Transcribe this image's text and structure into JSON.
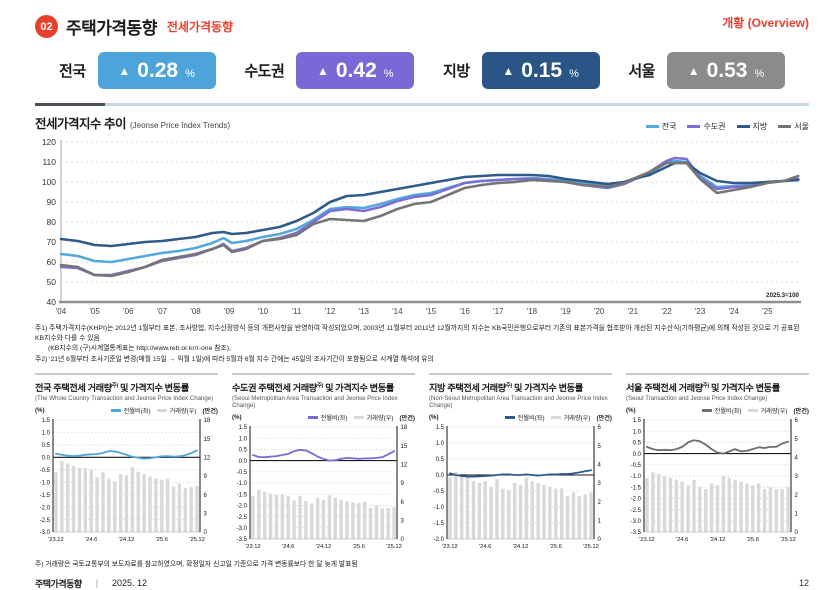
{
  "header": {
    "badge": "02",
    "title": "주택가격동향",
    "subtitle": "전세가격동향",
    "overview": "개황 (Overview)"
  },
  "stats": [
    {
      "label": "전국",
      "arrow": "▲",
      "value": "0.28",
      "unit": "%",
      "color": "#4CA4DB"
    },
    {
      "label": "수도권",
      "arrow": "▲",
      "value": "0.42",
      "unit": "%",
      "color": "#7A68D6"
    },
    {
      "label": "지방",
      "arrow": "▲",
      "value": "0.15",
      "unit": "%",
      "color": "#2A5586"
    },
    {
      "label": "서울",
      "arrow": "▲",
      "value": "0.53",
      "unit": "%",
      "color": "#8B8B8B"
    }
  ],
  "notes": [
    {
      "text": "주1) 주택가격지수(KHPI)는 2012년 1월부터 표본, 조사방법, 지수산정방식 등의 개편사항을 반영하여 작성되었으며, 2003년 11월부터 2011년 12월까지의 지수는 KB국민은행으로부터 기존의 표본가격을 협조받아 개선된 지수산식(기하평균)에 의해 작성된 것으로 기 공표된 KB지수와 다를 수 있음",
      "indent": false
    },
    {
      "text": "(KB지수의 (구)시계열통계표는 http://www.reb.or.kr/r-one 참조),",
      "indent": true
    },
    {
      "text": "주2) '21년 6월부터 조사기준일 변경(매월 15일 → 익월 1일)에 따라 5월과 6월 지수 간에는 45일의 조사기간이 포함됨으로 시계열 해석에 유의",
      "indent": false
    }
  ],
  "bottom_note": "주) 거래량은 국토교통부의 보도자료를 참고하였으며, 확정일자 신고일 기준으로 가격 변동률보다 한 달 늦게 발표됨",
  "footer": {
    "title": "주택가격동향",
    "divider": "|",
    "date": "2025. 12",
    "page": "12"
  },
  "chart_data": [
    {
      "type": "line",
      "title": "전세가격지수 추이",
      "subtitle_en": "(Jeonse Price Index Trends)",
      "note": "2025.3=100",
      "ylim": [
        40,
        120
      ],
      "ytick_step": 10,
      "x_range": [
        2004,
        2026
      ],
      "x_tick_labels": [
        "'04",
        "'05",
        "'06",
        "'07",
        "'08",
        "'09",
        "'10",
        "'11",
        "'12",
        "'13",
        "'14",
        "'15",
        "'16",
        "'17",
        "'18",
        "'19",
        "'20",
        "'21",
        "'22",
        "'23",
        "'24",
        "'25"
      ],
      "legend_position": "top-right",
      "x": [
        2004.0,
        2004.5,
        2005.0,
        2005.5,
        2006.0,
        2006.5,
        2007.0,
        2007.5,
        2008.0,
        2008.5,
        2008.83,
        2009.08,
        2009.5,
        2010.0,
        2010.5,
        2011.0,
        2011.5,
        2012.0,
        2012.5,
        2013.0,
        2013.5,
        2014.0,
        2014.5,
        2015.0,
        2015.5,
        2016.0,
        2016.5,
        2017.0,
        2017.5,
        2018.0,
        2018.5,
        2019.0,
        2019.5,
        2020.0,
        2020.25,
        2020.75,
        2021.0,
        2021.5,
        2022.0,
        2022.25,
        2022.6,
        2023.0,
        2023.5,
        2024.0,
        2024.5,
        2025.0,
        2025.5,
        2025.92
      ],
      "series": [
        {
          "name": "전국",
          "color": "#55A8DC",
          "values": [
            64,
            63,
            60.5,
            60,
            61.5,
            63,
            64.5,
            65.5,
            67,
            69.5,
            72,
            69.5,
            70.5,
            72.5,
            74,
            76.5,
            81,
            86.5,
            87.5,
            87,
            89,
            91.5,
            93.5,
            94.5,
            97,
            99.5,
            100.5,
            101,
            101.5,
            102,
            101.5,
            100.5,
            99.5,
            98.5,
            98,
            99.5,
            101,
            104.5,
            109.5,
            110.5,
            110,
            103,
            97.5,
            98,
            98.5,
            100,
            100.5,
            101.5
          ]
        },
        {
          "name": "수도권",
          "color": "#7B6FD6",
          "values": [
            57.5,
            57,
            53.5,
            53.5,
            55.5,
            57.5,
            60.5,
            62,
            63.5,
            66.5,
            69,
            65.5,
            67,
            70.5,
            72,
            74.5,
            80,
            85.5,
            86.5,
            85.5,
            87.5,
            90.5,
            92.5,
            93.5,
            96.5,
            99.5,
            100.5,
            101,
            101.5,
            101.5,
            101,
            100,
            98.5,
            97.5,
            97,
            99,
            101,
            105,
            110.5,
            112,
            111.5,
            102,
            96.5,
            97.5,
            98,
            100,
            100.5,
            101.5
          ]
        },
        {
          "name": "지방",
          "color": "#2E5A8C",
          "values": [
            71.5,
            70.5,
            68.5,
            68,
            69,
            70,
            70.5,
            71.5,
            72.5,
            74.5,
            75,
            74,
            74.5,
            76,
            77.5,
            80.5,
            84.5,
            90,
            93,
            93.5,
            95,
            96.5,
            98,
            99.5,
            101,
            102.5,
            103,
            103.5,
            103.5,
            103.5,
            103,
            101.5,
            100.5,
            99.5,
            99,
            100,
            101.5,
            103.5,
            107.5,
            109.5,
            109.5,
            104.5,
            100.5,
            99.5,
            99.5,
            100,
            100.5,
            101
          ]
        },
        {
          "name": "서울",
          "color": "#757575",
          "values": [
            58.5,
            57.5,
            53.5,
            53,
            55,
            57.5,
            61,
            62.5,
            64,
            66.5,
            68.5,
            65,
            66.5,
            70.5,
            71.5,
            73.5,
            79,
            81.5,
            81,
            80.5,
            83,
            86.5,
            89,
            90,
            93.5,
            97,
            98.5,
            99.5,
            100,
            101,
            100.5,
            100,
            98.5,
            98,
            97.5,
            99.5,
            101.5,
            105,
            109.5,
            109.5,
            109.5,
            101.5,
            94.5,
            96,
            97.5,
            99.5,
            100.5,
            103
          ]
        }
      ]
    },
    {
      "type": "bar+line",
      "title": "전국 주택전세 거래량",
      "title_sup": "주)",
      "title_tail": " 및 가격지수 변동률",
      "subtitle_en": "(The Whole Country Transaction and Jeonse Price Index Change)",
      "left_axis": {
        "label": "(%)",
        "min": -3.0,
        "max": 1.5,
        "step": 0.5
      },
      "right_axis": {
        "label": "(만건)",
        "min": 0,
        "max": 18,
        "step": 3
      },
      "x_ticks": [
        {
          "i": 0,
          "label": "'23.12"
        },
        {
          "i": 6,
          "label": "'24.6"
        },
        {
          "i": 12,
          "label": "'24.12"
        },
        {
          "i": 18,
          "label": "'25.6"
        },
        {
          "i": 24,
          "label": "'25.12"
        }
      ],
      "line": {
        "name": "전월비(좌)",
        "color": "#4FA6DC",
        "values": [
          0.15,
          0.1,
          0.07,
          0.05,
          0.07,
          0.1,
          0.12,
          0.13,
          0.18,
          0.25,
          0.24,
          0.18,
          0.1,
          0.02,
          -0.02,
          -0.05,
          -0.04,
          0.0,
          0.04,
          0.05,
          0.03,
          0.04,
          0.08,
          0.17,
          0.28
        ]
      },
      "bars": {
        "name": "거래량(우)",
        "color": "#D9D9D9",
        "values": [
          9.6,
          11.4,
          11.0,
          10.6,
          10.3,
          10.3,
          10.0,
          8.8,
          9.6,
          8.6,
          8.1,
          9.3,
          9.1,
          10.4,
          9.7,
          9.3,
          8.9,
          8.6,
          8.4,
          8.6,
          7.3,
          7.8,
          7.1,
          7.2,
          7.4
        ]
      }
    },
    {
      "type": "bar+line",
      "title": "수도권 주택전세 거래량",
      "title_sup": "주)",
      "title_tail": " 및 가격지수 변동률",
      "subtitle_en": "(Seoul Metropolitan Area Transaction and Jeonse Price Index Change)",
      "left_axis": {
        "label": "(%)",
        "min": -3.5,
        "max": 1.5,
        "step": 0.5
      },
      "right_axis": {
        "label": "(만건)",
        "min": 0,
        "max": 18,
        "step": 3
      },
      "x_ticks": [
        {
          "i": 0,
          "label": "'23.12"
        },
        {
          "i": 6,
          "label": "'24.6"
        },
        {
          "i": 12,
          "label": "'24.12"
        },
        {
          "i": 18,
          "label": "'25.6"
        },
        {
          "i": 24,
          "label": "'25.12"
        }
      ],
      "line": {
        "name": "전월비(좌)",
        "color": "#7B6BD6",
        "values": [
          0.25,
          0.16,
          0.15,
          0.18,
          0.2,
          0.25,
          0.3,
          0.42,
          0.48,
          0.45,
          0.33,
          0.18,
          0.08,
          0.0,
          0.02,
          0.08,
          0.12,
          0.1,
          0.08,
          0.1,
          0.1,
          0.12,
          0.15,
          0.28,
          0.42
        ]
      },
      "bars": {
        "name": "거래량(우)",
        "color": "#D9D9D9",
        "values": [
          6.9,
          7.9,
          7.6,
          7.3,
          7.1,
          7.1,
          6.9,
          6.2,
          6.9,
          6.1,
          5.7,
          6.6,
          6.3,
          7.0,
          6.6,
          6.3,
          6.1,
          5.9,
          5.8,
          6.0,
          5.0,
          5.4,
          4.9,
          5.0,
          5.1
        ]
      }
    },
    {
      "type": "bar+line",
      "title": "지방 주택전세 거래량",
      "title_sup": "주)",
      "title_tail": " 및 가격지수 변동률",
      "subtitle_en": "(Non-Seoul Metropolitan Area Transaction and Jeonse Price Index Change)",
      "left_axis": {
        "label": "(%)",
        "min": -2.0,
        "max": 1.5,
        "step": 0.5
      },
      "right_axis": {
        "label": "(만건)",
        "min": 0,
        "max": 6,
        "step": 1
      },
      "x_ticks": [
        {
          "i": 0,
          "label": "'23.12"
        },
        {
          "i": 6,
          "label": "'24.6"
        },
        {
          "i": 12,
          "label": "'24.12"
        },
        {
          "i": 18,
          "label": "'25.6"
        },
        {
          "i": 24,
          "label": "'25.12"
        }
      ],
      "line": {
        "name": "전월비(좌)",
        "color": "#2E5A8C",
        "values": [
          0.05,
          0.0,
          -0.03,
          -0.05,
          -0.05,
          -0.04,
          -0.03,
          -0.02,
          0.0,
          0.02,
          0.02,
          0.0,
          0.0,
          0.02,
          0.0,
          -0.02,
          0.0,
          0.02,
          0.02,
          0.03,
          0.03,
          0.05,
          0.08,
          0.12,
          0.15
        ]
      },
      "bars": {
        "name": "거래량(우)",
        "color": "#D9D9D9",
        "values": [
          3.3,
          3.6,
          3.5,
          3.3,
          3.1,
          3.0,
          3.1,
          2.8,
          3.2,
          2.7,
          2.6,
          3.0,
          2.9,
          3.3,
          3.1,
          3.0,
          2.9,
          2.8,
          2.7,
          2.7,
          2.3,
          2.5,
          2.3,
          2.4,
          2.5
        ]
      }
    },
    {
      "type": "bar+line",
      "title": "서울 주택전세 거래량",
      "title_sup": "주)",
      "title_tail": " 및 가격지수 변동률",
      "subtitle_en": "(Seoul Transaction and Jeonse Price Index Change)",
      "left_axis": {
        "label": "(%)",
        "min": -3.5,
        "max": 1.5,
        "step": 0.5
      },
      "right_axis": {
        "label": "(만건)",
        "min": 0,
        "max": 6,
        "step": 1
      },
      "x_ticks": [
        {
          "i": 0,
          "label": "'23.12"
        },
        {
          "i": 6,
          "label": "'24.6"
        },
        {
          "i": 12,
          "label": "'24.12"
        },
        {
          "i": 18,
          "label": "'25.6"
        },
        {
          "i": 24,
          "label": "'25.12"
        }
      ],
      "line": {
        "name": "전월비(좌)",
        "color": "#6E6E6E",
        "values": [
          0.3,
          0.2,
          0.15,
          0.17,
          0.15,
          0.2,
          0.3,
          0.5,
          0.6,
          0.55,
          0.4,
          0.2,
          0.05,
          0.0,
          0.1,
          0.2,
          0.1,
          0.12,
          0.2,
          0.28,
          0.25,
          0.3,
          0.3,
          0.45,
          0.53
        ]
      },
      "bars": {
        "name": "거래량(우)",
        "color": "#D9D9D9",
        "values": [
          2.9,
          3.2,
          3.1,
          3.0,
          2.9,
          2.8,
          2.7,
          2.5,
          2.8,
          2.4,
          2.3,
          2.6,
          2.5,
          3.0,
          2.9,
          2.8,
          2.7,
          2.6,
          2.5,
          2.6,
          2.3,
          2.4,
          2.3,
          2.3,
          2.4
        ]
      }
    }
  ]
}
